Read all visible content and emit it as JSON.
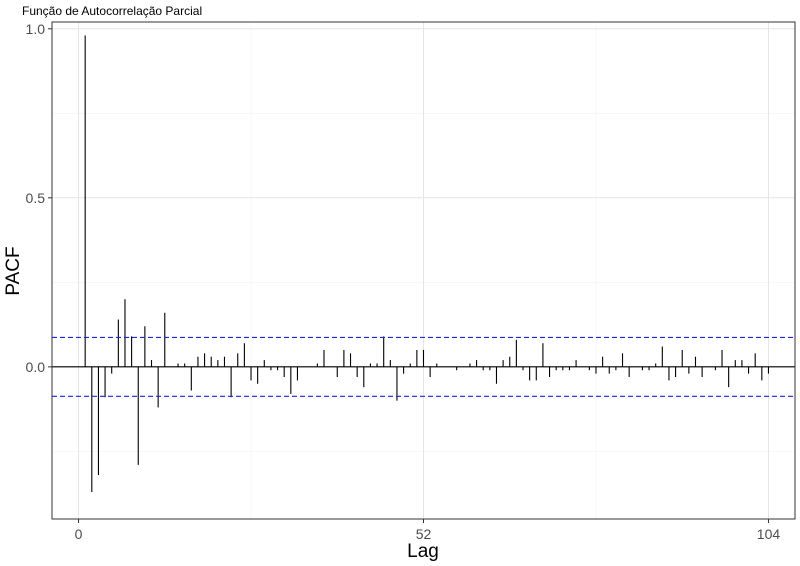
{
  "chart_data": {
    "type": "bar",
    "title": "Função de Autocorrelação Parcial",
    "xlabel": "Lag",
    "ylabel": "PACF",
    "xlim": [
      -4,
      108
    ],
    "ylim": [
      -0.45,
      1.02
    ],
    "x_ticks": [
      0,
      52,
      104
    ],
    "x_tick_labels": [
      "0",
      "52",
      "104"
    ],
    "y_ticks": [
      0.0,
      0.5,
      1.0
    ],
    "y_tick_labels": [
      "0.0",
      "0.5",
      "1.0"
    ],
    "confidence_band": 0.087,
    "grid": true,
    "lags": [
      1,
      2,
      3,
      4,
      5,
      6,
      7,
      8,
      9,
      10,
      11,
      12,
      13,
      14,
      15,
      16,
      17,
      18,
      19,
      20,
      21,
      22,
      23,
      24,
      25,
      26,
      27,
      28,
      29,
      30,
      31,
      32,
      33,
      34,
      35,
      36,
      37,
      38,
      39,
      40,
      41,
      42,
      43,
      44,
      45,
      46,
      47,
      48,
      49,
      50,
      51,
      52,
      53,
      54,
      55,
      56,
      57,
      58,
      59,
      60,
      61,
      62,
      63,
      64,
      65,
      66,
      67,
      68,
      69,
      70,
      71,
      72,
      73,
      74,
      75,
      76,
      77,
      78,
      79,
      80,
      81,
      82,
      83,
      84,
      85,
      86,
      87,
      88,
      89,
      90,
      91,
      92,
      93,
      94,
      95,
      96,
      97,
      98,
      99,
      100,
      101,
      102,
      103,
      104
    ],
    "values": [
      0.98,
      -0.37,
      -0.32,
      -0.09,
      -0.02,
      0.14,
      0.2,
      0.09,
      -0.29,
      0.12,
      0.02,
      -0.12,
      0.16,
      0.0,
      0.01,
      0.01,
      -0.07,
      0.03,
      0.04,
      0.03,
      0.02,
      0.03,
      -0.09,
      0.04,
      0.07,
      -0.04,
      -0.05,
      0.02,
      -0.01,
      -0.01,
      -0.03,
      -0.08,
      -0.04,
      0.0,
      0.0,
      0.01,
      0.05,
      0.0,
      -0.03,
      0.05,
      0.04,
      -0.03,
      -0.06,
      0.01,
      0.01,
      0.09,
      0.02,
      -0.1,
      -0.02,
      0.01,
      0.05,
      0.05,
      -0.03,
      0.01,
      0.0,
      0.0,
      -0.01,
      0.0,
      0.01,
      0.02,
      -0.01,
      -0.01,
      -0.05,
      0.02,
      0.03,
      0.08,
      -0.01,
      -0.04,
      -0.04,
      0.07,
      -0.03,
      -0.01,
      -0.01,
      -0.01,
      0.02,
      0.0,
      -0.01,
      -0.02,
      0.03,
      -0.02,
      -0.01,
      0.04,
      -0.03,
      0.0,
      -0.01,
      -0.01,
      0.01,
      0.06,
      -0.04,
      -0.03,
      0.05,
      -0.02,
      0.03,
      -0.03,
      0.0,
      -0.01,
      0.05,
      -0.06,
      0.02,
      0.02,
      -0.02,
      0.04,
      -0.04,
      -0.02
    ]
  }
}
